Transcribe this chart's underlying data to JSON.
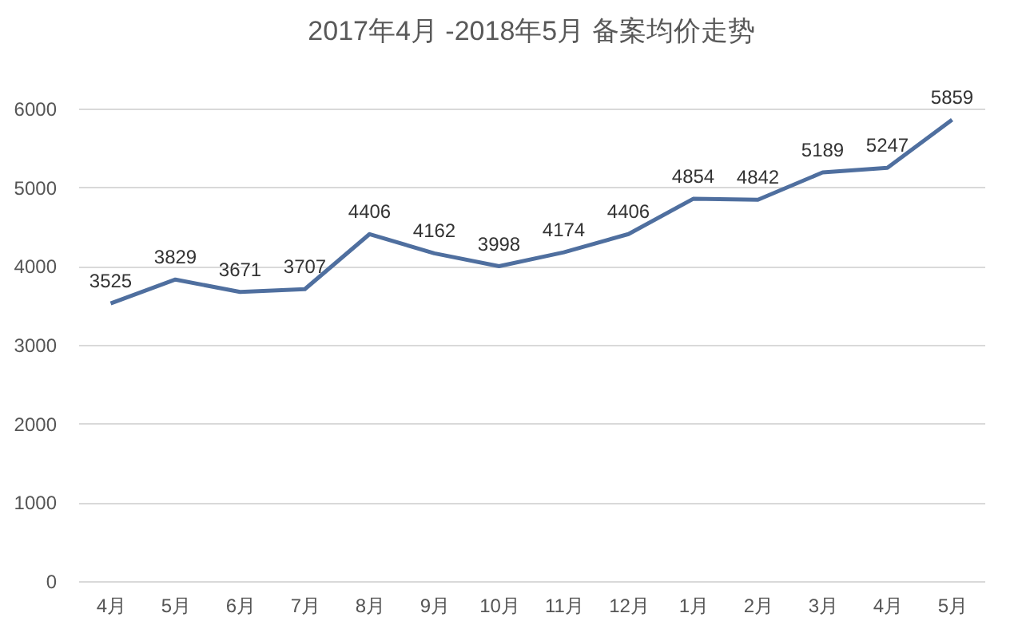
{
  "chart_data": {
    "type": "line",
    "title": "2017年4月 -2018年5月 备案均价走势",
    "categories": [
      "4月",
      "5月",
      "6月",
      "7月",
      "8月",
      "9月",
      "10月",
      "11月",
      "12月",
      "1月",
      "2月",
      "3月",
      "4月",
      "5月"
    ],
    "series": [
      {
        "color": "#4f6f9f",
        "values": [
          3525,
          3829,
          3671,
          3707,
          4406,
          4162,
          3998,
          4174,
          4406,
          4854,
          4842,
          5189,
          5247,
          5859
        ]
      }
    ],
    "ylim": [
      0,
      6000
    ],
    "yticks": [
      0,
      1000,
      2000,
      3000,
      4000,
      5000,
      6000
    ],
    "grid": "y",
    "data_labels": true,
    "marker": "none",
    "line_style": "solid",
    "legend": false
  }
}
